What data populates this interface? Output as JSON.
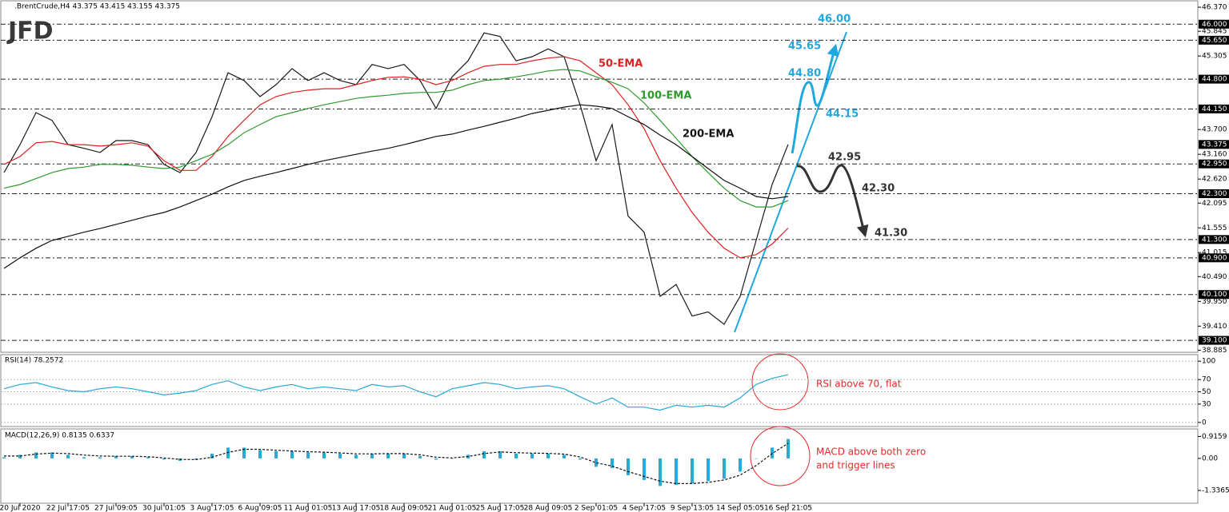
{
  "logo": "JFD",
  "chart_data": [
    {
      "type": "line",
      "title": ".BrentCrude,H4 43.375 43.415 43.155 43.375",
      "ylim": [
        38.84,
        46.51
      ],
      "yticks": [
        {
          "value": 46.37,
          "label": "46.370"
        },
        {
          "value": 45.845,
          "label": "45.845"
        },
        {
          "value": 45.305,
          "label": "45.305"
        },
        {
          "value": 43.7,
          "label": "43.700"
        },
        {
          "value": 43.16,
          "label": "43.160"
        },
        {
          "value": 42.62,
          "label": "42.620"
        },
        {
          "value": 42.095,
          "label": "42.095"
        },
        {
          "value": 41.555,
          "label": "41.555"
        },
        {
          "value": 41.015,
          "label": "41.015"
        },
        {
          "value": 40.49,
          "label": "40.490"
        },
        {
          "value": 39.95,
          "label": "39.950"
        },
        {
          "value": 39.41,
          "label": "39.410"
        },
        {
          "value": 38.885,
          "label": "38.885"
        }
      ],
      "levels": [
        {
          "value": 46.0,
          "label": "46.000"
        },
        {
          "value": 45.65,
          "label": "45.650"
        },
        {
          "value": 44.8,
          "label": "44.800"
        },
        {
          "value": 44.15,
          "label": "44.150"
        },
        {
          "value": 42.95,
          "label": "42.950"
        },
        {
          "value": 42.3,
          "label": "42.300"
        },
        {
          "value": 41.3,
          "label": "41.300"
        },
        {
          "value": 40.9,
          "label": "40.900"
        },
        {
          "value": 40.1,
          "label": "40.100"
        },
        {
          "value": 39.1,
          "label": "39.100"
        }
      ],
      "last_price": {
        "value": 43.375,
        "label": "43.375"
      },
      "series": [
        {
          "color": "#1a1a1a",
          "values": [
            42.76,
            43.37,
            44.07,
            43.9,
            43.37,
            43.29,
            43.2,
            43.46,
            43.46,
            43.37,
            42.94,
            42.76,
            43.2,
            43.98,
            44.94,
            44.77,
            44.42,
            44.68,
            45.03,
            44.77,
            44.94,
            44.77,
            44.68,
            45.12,
            45.03,
            45.12,
            44.77,
            44.16,
            44.85,
            45.2,
            45.81,
            45.73,
            45.2,
            45.29,
            45.46,
            45.29,
            44.24,
            43.02,
            43.81,
            41.81,
            41.46,
            40.06,
            40.32,
            39.63,
            39.72,
            39.45,
            40.06,
            41.28,
            42.5,
            43.375
          ]
        },
        {
          "name": "50-EMA",
          "color": "#e02020",
          "values": [
            42.94,
            43.11,
            43.41,
            43.44,
            43.37,
            43.37,
            43.34,
            43.37,
            43.41,
            43.34,
            43.02,
            42.81,
            42.81,
            43.11,
            43.55,
            43.9,
            44.24,
            44.42,
            44.51,
            44.56,
            44.59,
            44.59,
            44.68,
            44.77,
            44.84,
            44.85,
            44.8,
            44.68,
            44.77,
            44.94,
            45.08,
            45.12,
            45.12,
            45.2,
            45.26,
            45.29,
            45.2,
            44.94,
            44.68,
            44.24,
            43.72,
            43.02,
            42.42,
            41.89,
            41.46,
            41.11,
            40.9,
            40.97,
            41.2,
            41.55
          ]
        },
        {
          "name": "100-EMA",
          "color": "#2e9a2e",
          "values": [
            42.42,
            42.5,
            42.63,
            42.76,
            42.85,
            42.88,
            42.94,
            42.94,
            42.92,
            42.88,
            42.85,
            42.88,
            43.02,
            43.16,
            43.37,
            43.63,
            43.81,
            43.98,
            44.07,
            44.16,
            44.24,
            44.31,
            44.38,
            44.42,
            44.45,
            44.49,
            44.51,
            44.51,
            44.56,
            44.68,
            44.77,
            44.8,
            44.85,
            44.91,
            44.98,
            45.01,
            44.98,
            44.85,
            44.73,
            44.59,
            44.28,
            43.9,
            43.51,
            43.11,
            42.76,
            42.42,
            42.15,
            42.01,
            42.01,
            42.15
          ]
        },
        {
          "name": "200-EMA",
          "color": "#111111",
          "values": [
            40.67,
            40.9,
            41.11,
            41.28,
            41.37,
            41.46,
            41.54,
            41.63,
            41.72,
            41.81,
            41.89,
            42.01,
            42.15,
            42.29,
            42.45,
            42.59,
            42.68,
            42.76,
            42.85,
            42.94,
            43.02,
            43.09,
            43.16,
            43.23,
            43.29,
            43.37,
            43.46,
            43.55,
            43.6,
            43.69,
            43.77,
            43.86,
            43.95,
            44.05,
            44.12,
            44.19,
            44.24,
            44.21,
            44.16,
            43.98,
            43.81,
            43.58,
            43.37,
            43.11,
            42.85,
            42.59,
            42.42,
            42.24,
            42.19,
            42.24
          ]
        }
      ],
      "annotations": [
        {
          "text": "46.00",
          "color": "#1fa8e0"
        },
        {
          "text": "45.65",
          "color": "#1fa8e0"
        },
        {
          "text": "44.80",
          "color": "#1fa8e0"
        },
        {
          "text": "44.15",
          "color": "#1fa8e0"
        },
        {
          "text": "42.95",
          "color": "#333333"
        },
        {
          "text": "42.30",
          "color": "#333333"
        },
        {
          "text": "41.30",
          "color": "#333333"
        }
      ]
    },
    {
      "type": "line",
      "title": "RSI(14) 78.2572",
      "ylim": [
        -6.7,
        110.7
      ],
      "yticks": [
        100,
        70,
        50,
        30,
        0
      ],
      "grid": true,
      "note": [
        "RSI above 70, flat"
      ],
      "series": [
        {
          "color": "#29a9d6",
          "values": [
            55,
            62,
            65,
            58,
            52,
            50,
            55,
            58,
            55,
            50,
            45,
            48,
            52,
            62,
            68,
            58,
            52,
            58,
            62,
            55,
            58,
            55,
            52,
            62,
            58,
            60,
            50,
            42,
            55,
            60,
            65,
            62,
            55,
            58,
            60,
            55,
            42,
            30,
            40,
            25,
            25,
            20,
            28,
            25,
            28,
            25,
            40,
            62,
            72,
            78
          ]
        }
      ]
    },
    {
      "type": "bar",
      "title": "MACD(12,26,9) 0.8135 0.6337",
      "ylim": [
        -1.87,
        1.23
      ],
      "yticks": [
        0.9159,
        {
          "value": 0,
          "label": "0.00"
        },
        -1.3365
      ],
      "note": [
        "MACD above both zero",
        "and trigger lines"
      ],
      "categories": [
        null,
        "20 Jul 2020",
        null,
        null,
        "22 Jul 17:05",
        null,
        null,
        "27 Jul 09:05",
        null,
        null,
        "30 Jul 01:05",
        null,
        null,
        "3 Aug 17:05",
        null,
        null,
        "6 Aug 09:05",
        null,
        null,
        "11 Aug 01:05",
        null,
        null,
        "13 Aug 17:05",
        null,
        null,
        "18 Aug 09:05",
        null,
        null,
        "21 Aug 01:05",
        null,
        null,
        "25 Aug 17:05",
        null,
        null,
        "28 Aug 09:05",
        null,
        null,
        "2 Sep 01:05",
        null,
        null,
        "4 Sep 17:05",
        null,
        null,
        "9 Sep 13:05",
        null,
        null,
        "14 Sep 05:05",
        null,
        null,
        "16 Sep 21:05"
      ],
      "series": [
        {
          "color": "#29a9d6",
          "values": [
            0.05,
            0.15,
            0.25,
            0.25,
            0.15,
            0.05,
            0.05,
            0.1,
            0.1,
            0.05,
            -0.05,
            -0.1,
            -0.05,
            0.2,
            0.45,
            0.45,
            0.35,
            0.3,
            0.3,
            0.25,
            0.25,
            0.2,
            0.15,
            0.2,
            0.2,
            0.2,
            0.1,
            -0.05,
            0.0,
            0.15,
            0.3,
            0.3,
            0.2,
            0.2,
            0.2,
            0.15,
            -0.05,
            -0.35,
            -0.4,
            -0.7,
            -0.9,
            -1.15,
            -1.1,
            -1.05,
            -0.95,
            -0.85,
            -0.55,
            0.0,
            0.45,
            0.81
          ]
        },
        {
          "type": "line",
          "color": "#111111",
          "dash": true,
          "values": [
            0.1,
            0.1,
            0.18,
            0.22,
            0.2,
            0.14,
            0.1,
            0.09,
            0.09,
            0.07,
            0.02,
            -0.04,
            -0.05,
            0.05,
            0.25,
            0.38,
            0.38,
            0.34,
            0.31,
            0.28,
            0.26,
            0.23,
            0.19,
            0.19,
            0.2,
            0.2,
            0.15,
            0.05,
            0.02,
            0.08,
            0.2,
            0.27,
            0.24,
            0.22,
            0.21,
            0.18,
            0.06,
            -0.18,
            -0.32,
            -0.55,
            -0.75,
            -0.95,
            -1.05,
            -1.05,
            -1.0,
            -0.9,
            -0.7,
            -0.3,
            0.2,
            0.63
          ]
        }
      ]
    }
  ]
}
